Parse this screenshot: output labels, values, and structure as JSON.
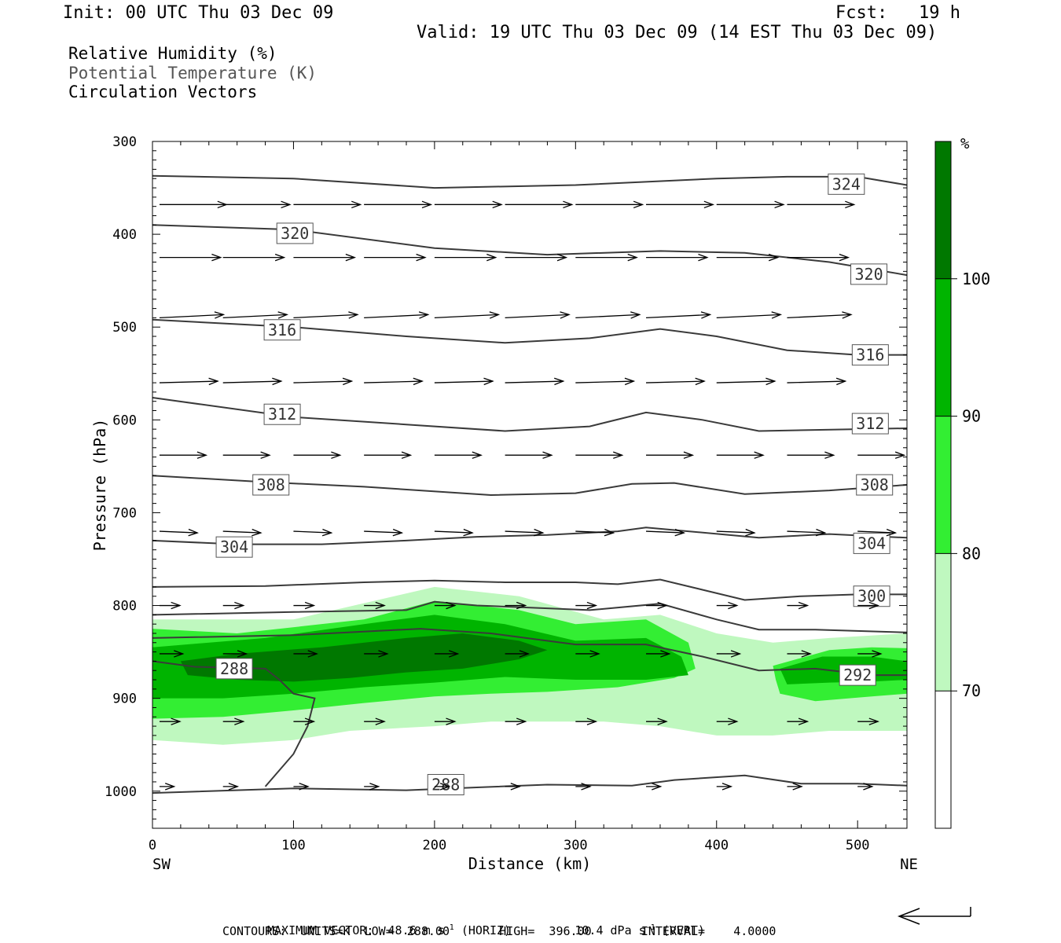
{
  "header": {
    "init": "Init: 00 UTC Thu 03 Dec 09",
    "fcst": "Fcst:   19 h",
    "valid": "Valid: 19 UTC Thu 03 Dec 09 (14 EST Thu 03 Dec 09)"
  },
  "fields": {
    "rh": "Relative Humidity (%)",
    "theta": "Potential Temperature (K)",
    "vectors": "Circulation Vectors"
  },
  "footer": {
    "max_label": "MAXIMUM VECTOR:",
    "max_horiz": "48.6 m s",
    "horiz_tag": "(HORIZ)",
    "max_vert": "10.4 dPa s",
    "vert_tag": "(VERT)",
    "exp": "-1",
    "contours": "CONTOURS:  UNITS=K  LOW=  288.00       HIGH=  396.00       INTERVAL=    4.0000"
  },
  "chart_data": {
    "type": "heatmap",
    "title": "",
    "xlabel": "Distance (km)",
    "ylabel": "Pressure (hPa)",
    "xlim": [
      0,
      535
    ],
    "ylim": [
      1040,
      300
    ],
    "x_ticks": [
      "0",
      "100",
      "200",
      "300",
      "400",
      "500"
    ],
    "x_tick_values": [
      0,
      100,
      200,
      300,
      400,
      500
    ],
    "x_ends": {
      "left": "SW",
      "right": "NE"
    },
    "y_ticks": [
      "300",
      "400",
      "500",
      "600",
      "700",
      "800",
      "900",
      "1000"
    ],
    "y_tick_values": [
      300,
      400,
      500,
      600,
      700,
      800,
      900,
      1000
    ],
    "colorbar": {
      "unit": "%",
      "labels": [
        "100",
        "90",
        "80",
        "70"
      ],
      "bands": [
        {
          "from": 100,
          "to": 105,
          "color": "#007800"
        },
        {
          "from": 90,
          "to": 100,
          "color": "#00b400"
        },
        {
          "from": 80,
          "to": 90,
          "color": "#33ee33"
        },
        {
          "from": 70,
          "to": 80,
          "color": "#bff8bf"
        },
        {
          "from": 60,
          "to": 70,
          "color": "#ffffff"
        }
      ]
    },
    "rh_fill": [
      {
        "level": 70,
        "color": "#bff8bf",
        "upper": [
          [
            0,
            815
          ],
          [
            100,
            815
          ],
          [
            200,
            780
          ],
          [
            260,
            790
          ],
          [
            320,
            815
          ],
          [
            360,
            810
          ],
          [
            400,
            830
          ],
          [
            440,
            840
          ],
          [
            480,
            835
          ],
          [
            535,
            830
          ]
        ],
        "lower": [
          [
            535,
            935
          ],
          [
            480,
            935
          ],
          [
            440,
            940
          ],
          [
            400,
            940
          ],
          [
            360,
            930
          ],
          [
            320,
            925
          ],
          [
            280,
            925
          ],
          [
            240,
            925
          ],
          [
            200,
            930
          ],
          [
            140,
            935
          ],
          [
            100,
            945
          ],
          [
            50,
            950
          ],
          [
            0,
            945
          ]
        ]
      },
      {
        "level": 80,
        "color": "#33ee33",
        "upper": [
          [
            0,
            825
          ],
          [
            60,
            830
          ],
          [
            150,
            815
          ],
          [
            200,
            795
          ],
          [
            260,
            805
          ],
          [
            300,
            820
          ],
          [
            350,
            815
          ],
          [
            380,
            840
          ],
          [
            385,
            868
          ],
          [
            370,
            878
          ],
          [
            330,
            888
          ],
          [
            280,
            893
          ],
          [
            240,
            895
          ],
          [
            200,
            898
          ],
          [
            150,
            905
          ],
          [
            100,
            913
          ],
          [
            50,
            920
          ],
          [
            0,
            922
          ]
        ],
        "lower": [],
        "extra": [
          [
            440,
            865
          ],
          [
            480,
            848
          ],
          [
            510,
            845
          ],
          [
            535,
            846
          ],
          [
            535,
            895
          ],
          [
            510,
            898
          ],
          [
            470,
            903
          ],
          [
            445,
            895
          ],
          [
            442,
            880
          ]
        ]
      },
      {
        "level": 90,
        "color": "#00b400",
        "upper": [
          [
            0,
            845
          ],
          [
            80,
            835
          ],
          [
            150,
            820
          ],
          [
            200,
            810
          ],
          [
            250,
            820
          ],
          [
            300,
            838
          ],
          [
            350,
            835
          ],
          [
            375,
            855
          ],
          [
            380,
            875
          ],
          [
            350,
            880
          ],
          [
            300,
            880
          ],
          [
            250,
            877
          ],
          [
            200,
            883
          ],
          [
            150,
            888
          ],
          [
            100,
            895
          ],
          [
            50,
            900
          ],
          [
            0,
            900
          ]
        ],
        "lower": [],
        "extra": [
          [
            445,
            868
          ],
          [
            475,
            855
          ],
          [
            510,
            855
          ],
          [
            535,
            860
          ],
          [
            535,
            880
          ],
          [
            510,
            882
          ],
          [
            480,
            883
          ],
          [
            450,
            885
          ]
        ]
      },
      {
        "level": 100,
        "color": "#007800",
        "upper": [
          [
            20,
            860
          ],
          [
            60,
            852
          ],
          [
            120,
            845
          ],
          [
            180,
            835
          ],
          [
            220,
            830
          ],
          [
            260,
            838
          ],
          [
            280,
            848
          ],
          [
            260,
            858
          ],
          [
            220,
            868
          ],
          [
            180,
            872
          ],
          [
            140,
            878
          ],
          [
            100,
            882
          ],
          [
            60,
            880
          ],
          [
            25,
            875
          ]
        ],
        "lower": []
      }
    ],
    "theta_contours": [
      {
        "label": "324",
        "points": [
          [
            0,
            337
          ],
          [
            100,
            340
          ],
          [
            200,
            350
          ],
          [
            300,
            347
          ],
          [
            400,
            340
          ],
          [
            450,
            338
          ],
          [
            500,
            338
          ],
          [
            535,
            347
          ]
        ],
        "label_at": [
          492,
          346
        ]
      },
      {
        "label": "320",
        "points": [
          [
            0,
            390
          ],
          [
            100,
            395
          ],
          [
            200,
            415
          ],
          [
            280,
            422
          ],
          [
            360,
            418
          ],
          [
            420,
            420
          ],
          [
            480,
            430
          ],
          [
            535,
            444
          ]
        ],
        "label_at": [
          101,
          399
        ]
      },
      {
        "label": "320",
        "points": [],
        "label_at": [
          508,
          443
        ]
      },
      {
        "label": "316",
        "points": [
          [
            0,
            492
          ],
          [
            100,
            500
          ],
          [
            180,
            510
          ],
          [
            250,
            517
          ],
          [
            310,
            512
          ],
          [
            360,
            502
          ],
          [
            400,
            510
          ],
          [
            450,
            525
          ],
          [
            500,
            530
          ],
          [
            535,
            530
          ]
        ],
        "label_at": [
          92,
          503
        ]
      },
      {
        "label": "316",
        "points": [],
        "label_at": [
          509,
          530
        ]
      },
      {
        "label": "312",
        "points": [
          [
            0,
            576
          ],
          [
            100,
            597
          ],
          [
            180,
            605
          ],
          [
            250,
            612
          ],
          [
            310,
            607
          ],
          [
            350,
            592
          ],
          [
            390,
            600
          ],
          [
            430,
            612
          ],
          [
            500,
            610
          ],
          [
            535,
            609
          ]
        ],
        "label_at": [
          92,
          594
        ]
      },
      {
        "label": "312",
        "points": [],
        "label_at": [
          509,
          604
        ]
      },
      {
        "label": "308",
        "points": [
          [
            0,
            660
          ],
          [
            80,
            667
          ],
          [
            150,
            672
          ],
          [
            240,
            681
          ],
          [
            300,
            679
          ],
          [
            340,
            669
          ],
          [
            370,
            668
          ],
          [
            420,
            680
          ],
          [
            480,
            676
          ],
          [
            535,
            670
          ]
        ],
        "label_at": [
          84,
          670
        ]
      },
      {
        "label": "308",
        "points": [],
        "label_at": [
          512,
          670
        ]
      },
      {
        "label": "304",
        "points": [
          [
            0,
            730
          ],
          [
            60,
            734
          ],
          [
            120,
            734
          ],
          [
            180,
            730
          ],
          [
            230,
            726
          ],
          [
            280,
            724
          ],
          [
            330,
            720
          ],
          [
            350,
            716
          ],
          [
            380,
            720
          ],
          [
            430,
            727
          ],
          [
            480,
            723
          ],
          [
            535,
            727
          ]
        ],
        "label_at": [
          58,
          737
        ]
      },
      {
        "label": "304",
        "points": [],
        "label_at": [
          510,
          733
        ]
      },
      {
        "label": "300",
        "points": [
          [
            0,
            780
          ],
          [
            80,
            779
          ],
          [
            150,
            775
          ],
          [
            200,
            773
          ],
          [
            250,
            775
          ],
          [
            300,
            775
          ],
          [
            330,
            777
          ],
          [
            360,
            772
          ],
          [
            390,
            783
          ],
          [
            420,
            794
          ],
          [
            460,
            790
          ],
          [
            500,
            788
          ],
          [
            535,
            788
          ]
        ],
        "label_at": [
          510,
          790
        ]
      },
      {
        "label": "",
        "points": [
          [
            0,
            810
          ],
          [
            100,
            807
          ],
          [
            180,
            805
          ],
          [
            200,
            796
          ],
          [
            230,
            800
          ],
          [
            280,
            803
          ],
          [
            310,
            805
          ],
          [
            360,
            798
          ],
          [
            400,
            815
          ],
          [
            430,
            826
          ],
          [
            470,
            826
          ],
          [
            535,
            829
          ]
        ],
        "label_at": null
      },
      {
        "label": "",
        "points": [
          [
            0,
            835
          ],
          [
            100,
            832
          ],
          [
            190,
            825
          ],
          [
            240,
            830
          ],
          [
            300,
            842
          ],
          [
            350,
            842
          ],
          [
            390,
            855
          ],
          [
            430,
            870
          ],
          [
            470,
            868
          ],
          [
            510,
            875
          ],
          [
            535,
            875
          ]
        ],
        "label_at": null
      },
      {
        "label": "292",
        "points": [],
        "label_at": [
          500,
          875
        ]
      },
      {
        "label": "288",
        "points": [
          [
            0,
            860
          ],
          [
            30,
            866
          ],
          [
            80,
            868
          ],
          [
            90,
            880
          ],
          [
            100,
            895
          ],
          [
            115,
            900
          ],
          [
            110,
            930
          ],
          [
            100,
            960
          ],
          [
            80,
            995
          ]
        ],
        "label_at": [
          58,
          868
        ]
      },
      {
        "label": "288",
        "points": [
          [
            0,
            1002
          ],
          [
            100,
            997
          ],
          [
            180,
            999
          ],
          [
            230,
            996
          ],
          [
            280,
            993
          ],
          [
            340,
            994
          ],
          [
            370,
            988
          ],
          [
            420,
            983
          ],
          [
            460,
            992
          ],
          [
            500,
            992
          ],
          [
            535,
            994
          ]
        ],
        "label_at": [
          208,
          993
        ]
      }
    ],
    "vector_rows": [
      {
        "p": 368,
        "u": 46,
        "v": 0
      },
      {
        "p": 425,
        "u": 42,
        "v": 0
      },
      {
        "p": 490,
        "u": 44,
        "v": -2
      },
      {
        "p": 560,
        "u": 40,
        "v": -1
      },
      {
        "p": 638,
        "u": 32,
        "v": 0
      },
      {
        "p": 720,
        "u": 26,
        "v": 1
      },
      {
        "p": 800,
        "u": 14,
        "v": 0
      },
      {
        "p": 852,
        "u": 16,
        "v": 0
      },
      {
        "p": 925,
        "u": 14,
        "v": 0
      },
      {
        "p": 995,
        "u": 10,
        "v": 0
      }
    ],
    "vector_x": [
      5,
      50,
      100,
      150,
      200,
      250,
      300,
      350,
      400,
      450,
      500
    ],
    "grid": false
  }
}
